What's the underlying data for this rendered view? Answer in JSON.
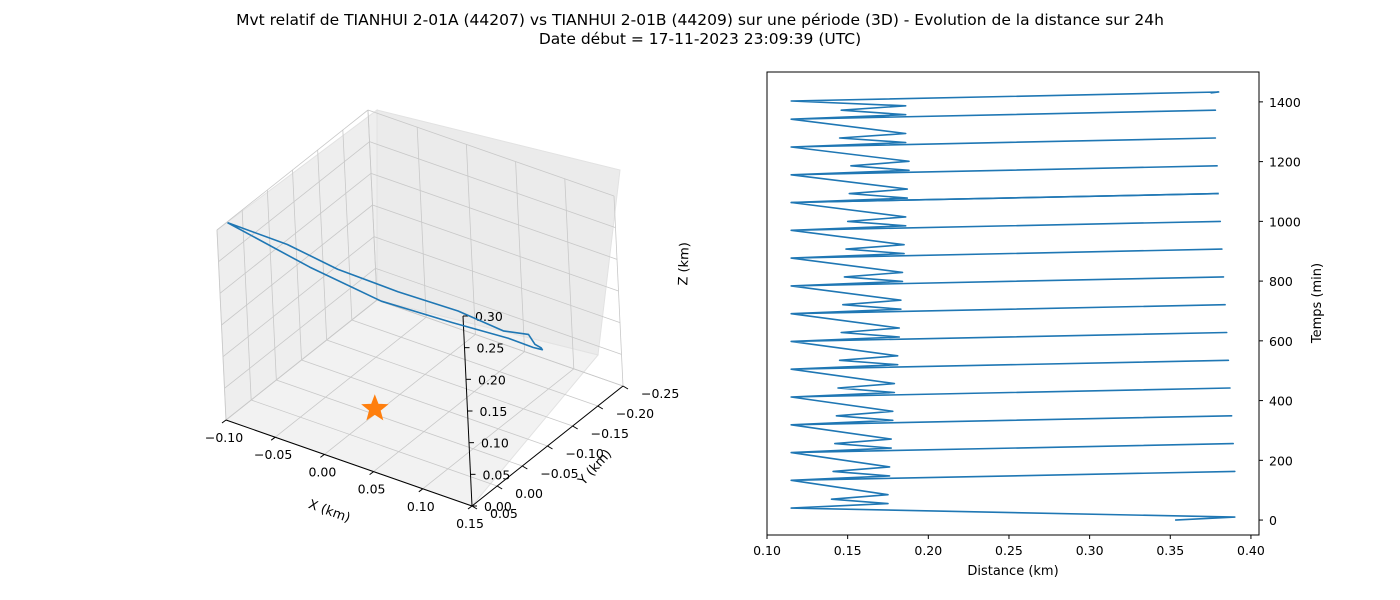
{
  "figure": {
    "title_line1": "Mvt relatif de TIANHUI 2-01A (44207) vs TIANHUI 2-01B (44209) sur une période (3D) - Evolution de la distance sur 24h",
    "title_line2": "Date début = 17-11-2023 23:09:39 (UTC)"
  },
  "colors": {
    "series": "#1f77b4",
    "marker": "#ff7f0e"
  },
  "chart_data": [
    {
      "type": "line",
      "projection": "3d",
      "xlabel": "X (km)",
      "ylabel": "Y (km)",
      "zlabel": "Z (km)",
      "xlim": [
        -0.1,
        0.15
      ],
      "ylim": [
        -0.25,
        0.05
      ],
      "zlim": [
        0.0,
        0.3
      ],
      "x_ticks": [
        "−0.10",
        "−0.05",
        "0.00",
        "0.05",
        "0.10",
        "0.15"
      ],
      "y_ticks": [
        "−0.25",
        "−0.20",
        "−0.15",
        "−0.10",
        "−0.05",
        "0.00",
        "0.05"
      ],
      "z_ticks": [
        "0.00",
        "0.05",
        "0.10",
        "0.15",
        "0.20",
        "0.25",
        "0.30"
      ],
      "grid": true,
      "series": [
        {
          "x": [
            -0.105,
            -0.055,
            -0.015,
            0.03,
            0.075,
            0.11,
            0.125,
            0.115,
            0.105,
            0.09,
            0.07,
            0.05,
            0.02,
            -0.02,
            -0.06,
            -0.105
          ],
          "y": [
            0.02,
            0.0,
            -0.02,
            -0.05,
            -0.08,
            -0.1,
            -0.12,
            -0.15,
            -0.18,
            -0.21,
            -0.23,
            -0.22,
            -0.17,
            -0.11,
            -0.05,
            0.02
          ],
          "z": [
            0.29,
            0.27,
            0.24,
            0.21,
            0.185,
            0.16,
            0.15,
            0.11,
            0.08,
            0.05,
            0.03,
            0.04,
            0.08,
            0.13,
            0.2,
            0.29
          ]
        }
      ],
      "marker": {
        "symbol": "star",
        "x": -0.005,
        "y": -0.06,
        "z": 0.0
      }
    },
    {
      "type": "line",
      "xlabel": "Distance (km)",
      "ylabel": "Temps (min)",
      "xlim": [
        0.1,
        0.405
      ],
      "ylim": [
        -50,
        1500
      ],
      "x_ticks": [
        0.1,
        0.15,
        0.2,
        0.25,
        0.3,
        0.35,
        0.4
      ],
      "y_ticks": [
        0,
        200,
        400,
        600,
        800,
        1000,
        1200,
        1400
      ],
      "yaxis_position": "right",
      "grid": false,
      "series": [
        {
          "distance": [
            0.353,
            0.39,
            0.115,
            0.175,
            0.14,
            0.175,
            0.115,
            0.39,
            0.115,
            0.176,
            0.141,
            0.176,
            0.115,
            0.389,
            0.115,
            0.177,
            0.142,
            0.177,
            0.115,
            0.388,
            0.115,
            0.178,
            0.143,
            0.178,
            0.115,
            0.387,
            0.115,
            0.179,
            0.144,
            0.179,
            0.115,
            0.386,
            0.115,
            0.181,
            0.145,
            0.181,
            0.115,
            0.385,
            0.115,
            0.182,
            0.146,
            0.182,
            0.115,
            0.384,
            0.115,
            0.183,
            0.147,
            0.183,
            0.115,
            0.383,
            0.115,
            0.184,
            0.148,
            0.184,
            0.115,
            0.382,
            0.115,
            0.185,
            0.149,
            0.185,
            0.115,
            0.381,
            0.115,
            0.186,
            0.15,
            0.186,
            0.115,
            0.38
          ],
          "time": [
            0,
            10,
            40,
            55,
            70,
            85,
            133,
            163,
            133,
            148,
            163,
            178,
            226,
            256,
            226,
            241,
            256,
            271,
            319,
            349,
            319,
            334,
            349,
            364,
            412,
            442,
            412,
            427,
            442,
            457,
            505,
            535,
            505,
            520,
            535,
            550,
            598,
            628,
            598,
            613,
            628,
            643,
            691,
            721,
            691,
            706,
            721,
            736,
            784,
            814,
            784,
            799,
            814,
            829,
            877,
            907,
            877,
            892,
            907,
            922,
            970,
            1000,
            970,
            985,
            1000,
            1015,
            1063,
            1093
          ]
        }
      ]
    }
  ]
}
